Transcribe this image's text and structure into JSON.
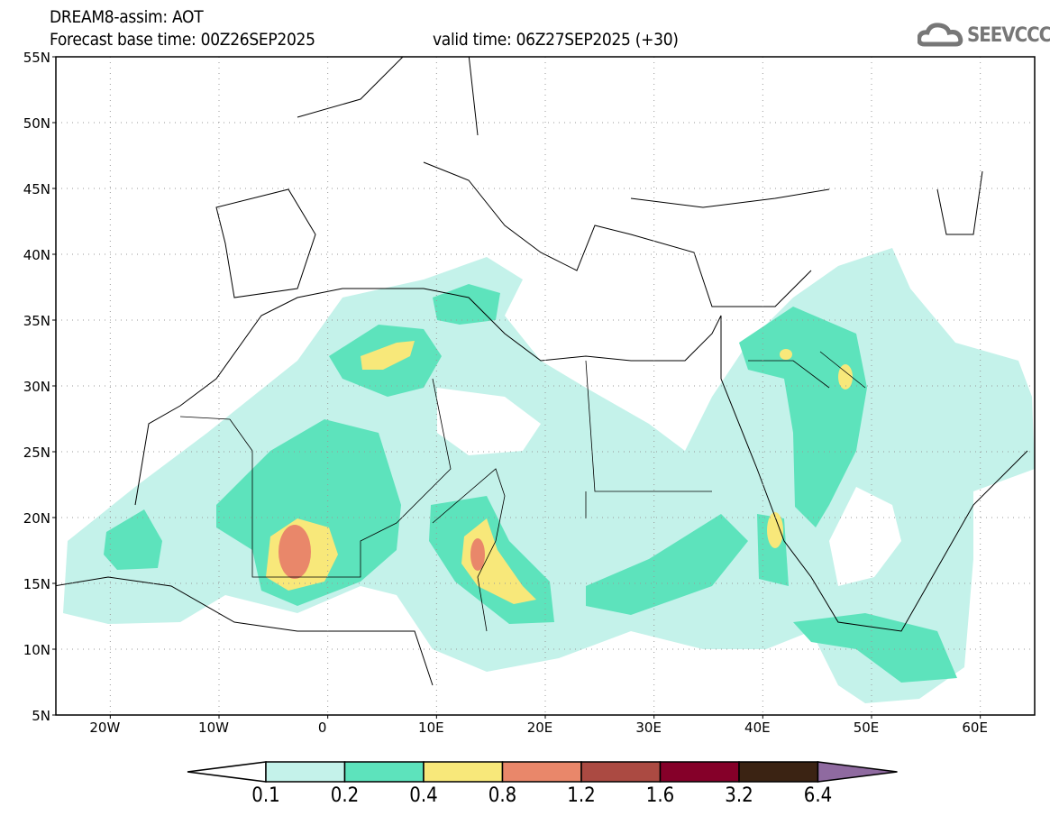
{
  "header": {
    "title": "DREAM8-assim: AOT",
    "base_time": "Forecast base time: 00Z26SEP2025",
    "valid_time": "valid time: 06Z27SEP2025 (+30)",
    "logo": "SEEVCCC"
  },
  "map": {
    "variable": "AOT",
    "lat_labels": [
      "55N",
      "50N",
      "45N",
      "40N",
      "35N",
      "30N",
      "25N",
      "20N",
      "15N",
      "10N",
      "5N"
    ],
    "lon_labels": [
      "20W",
      "10W",
      "0",
      "10E",
      "20E",
      "30E",
      "40E",
      "50E",
      "60E"
    ]
  },
  "colorbar": {
    "labels": [
      "0.1",
      "0.2",
      "0.4",
      "0.8",
      "1.2",
      "1.6",
      "3.2",
      "6.4"
    ],
    "colors": [
      "#ffffff",
      "#c4f2ea",
      "#5de3bc",
      "#f8e87a",
      "#e9876a",
      "#ab4a42",
      "#850029",
      "#3b2313",
      "#8f6aa0"
    ]
  }
}
